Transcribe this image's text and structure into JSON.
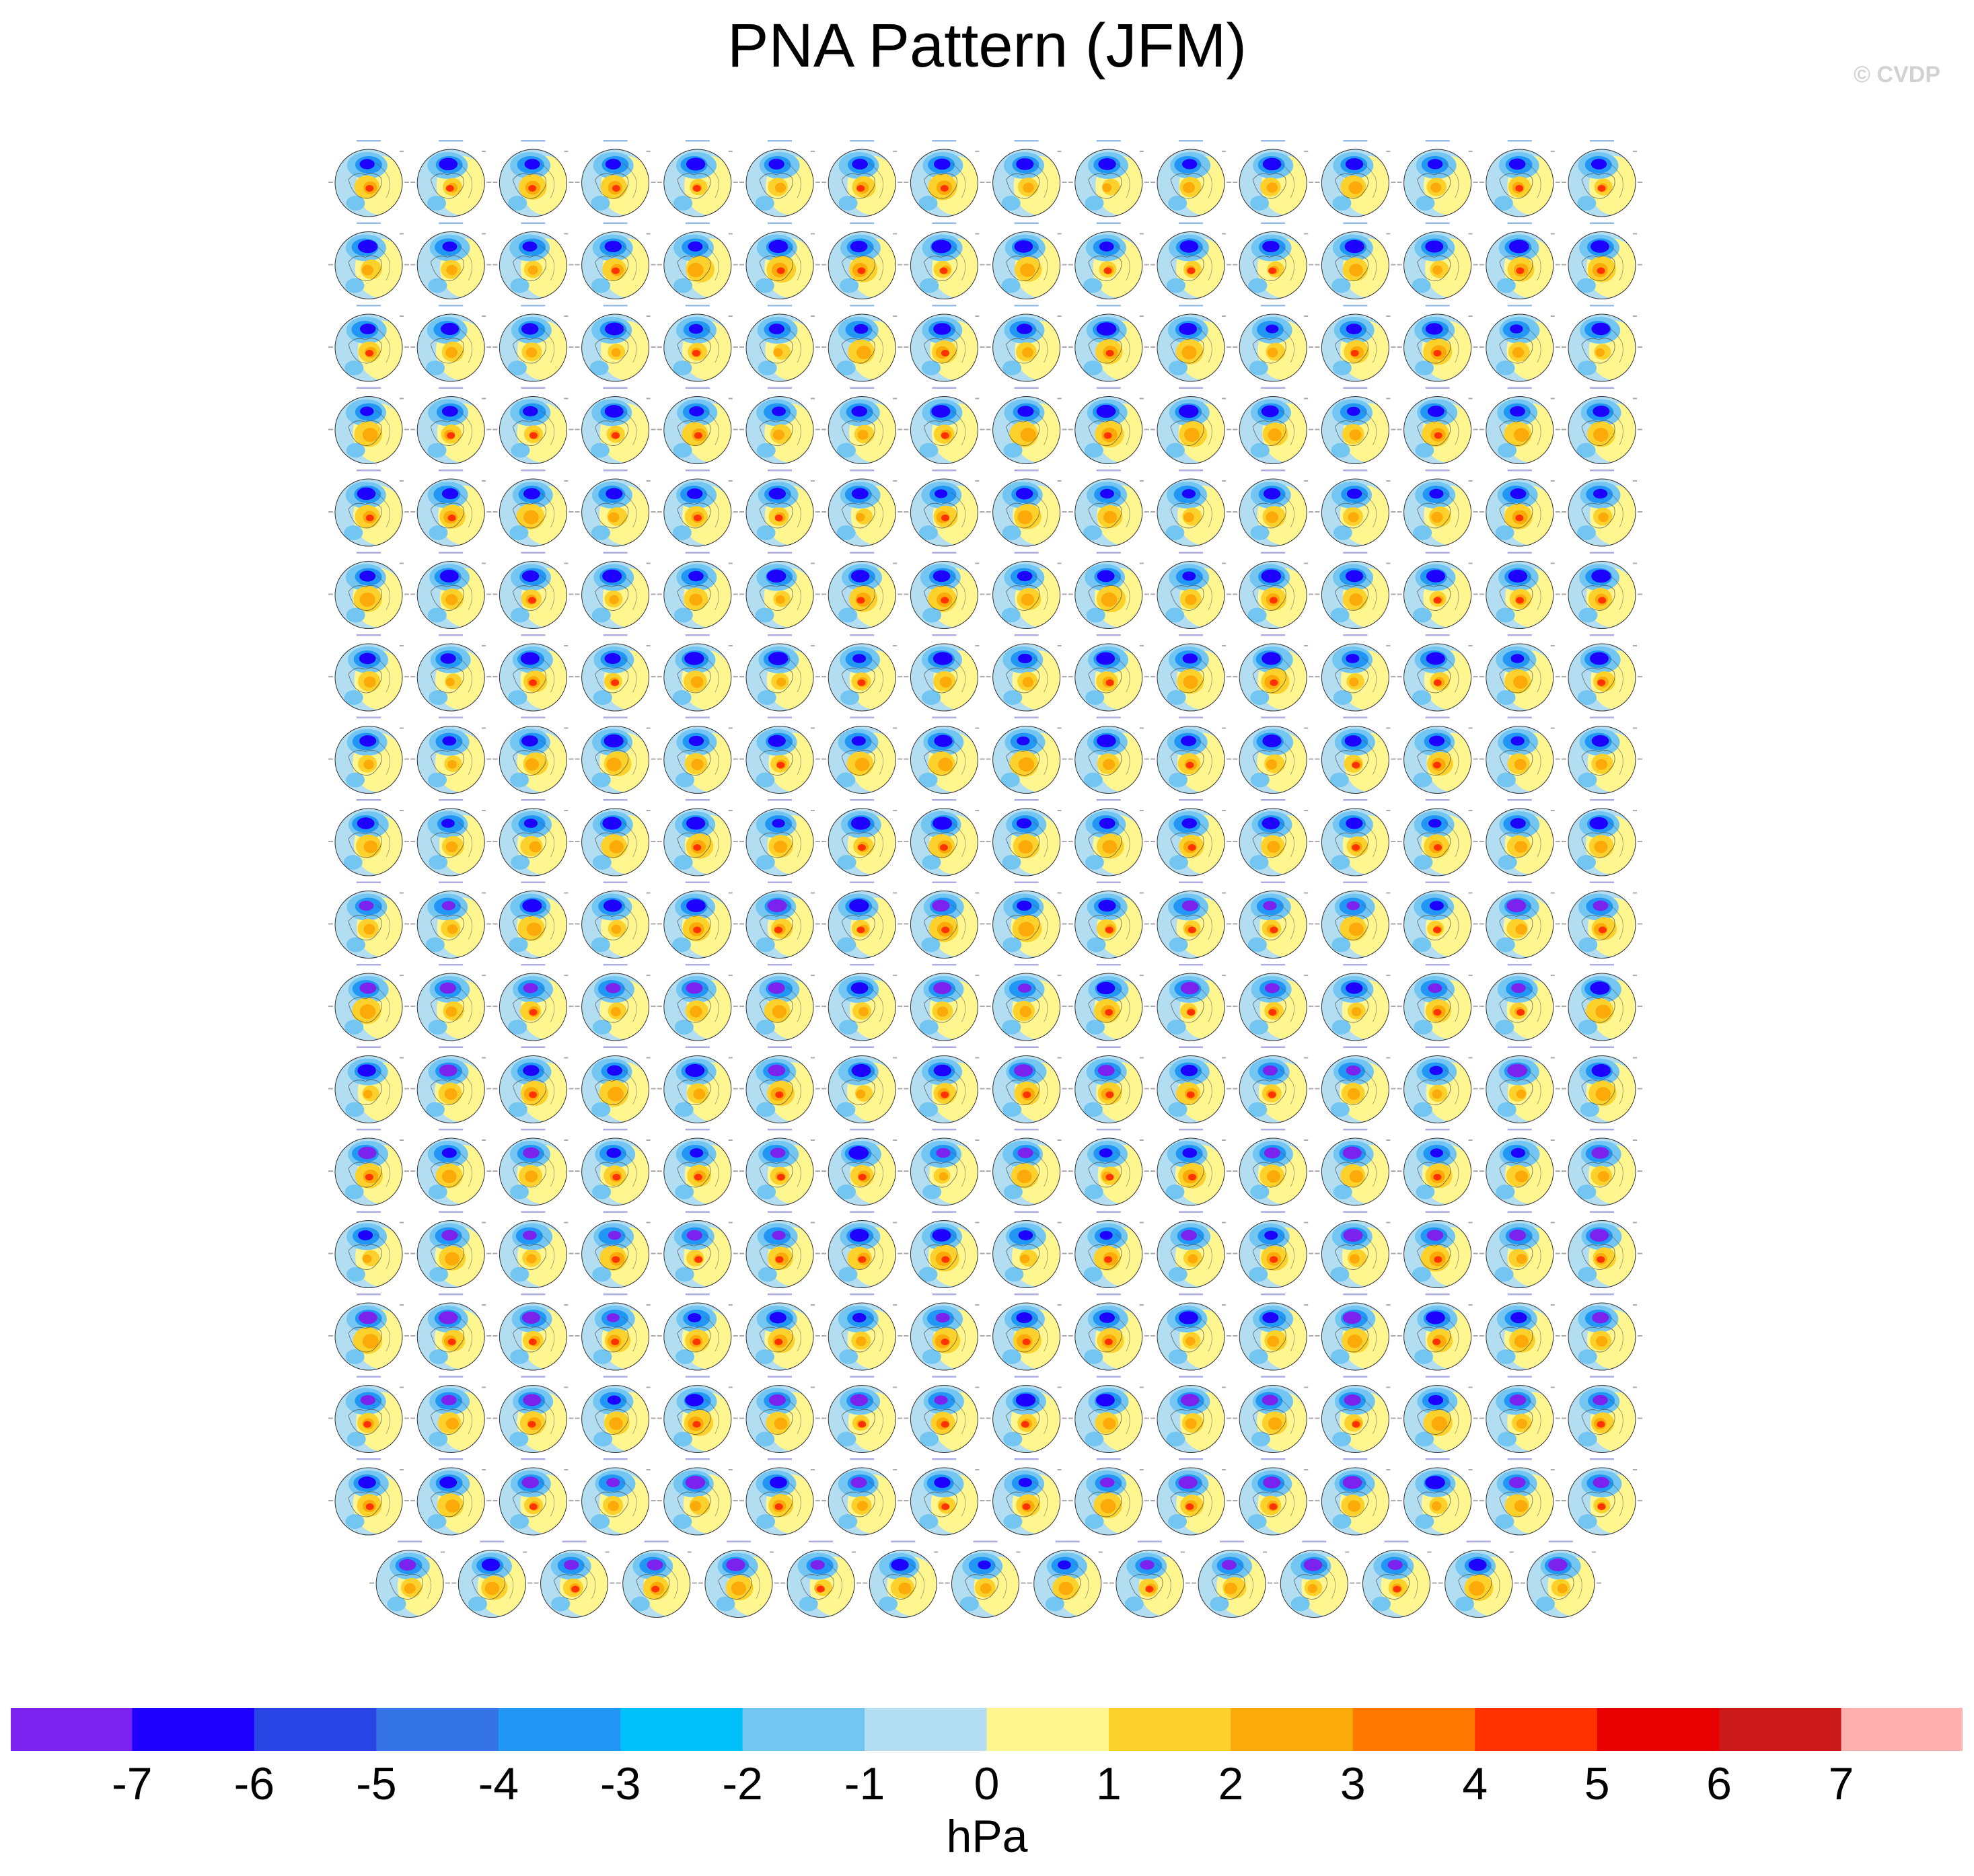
{
  "title": "PNA Pattern (JFM)",
  "watermark": "© CVDP",
  "chart_data": {
    "type": "heatmap",
    "title": "PNA Pattern (JFM)",
    "panel_grid": {
      "rows": 18,
      "columns_per_row": [
        16,
        16,
        16,
        16,
        16,
        16,
        16,
        16,
        16,
        16,
        16,
        16,
        16,
        16,
        16,
        16,
        16,
        15
      ],
      "total_panels": 287,
      "map_projection": "north polar stereographic"
    },
    "colorbar": {
      "unit": "hPa",
      "tick_labels": [
        "-7",
        "-6",
        "-5",
        "-4",
        "-3",
        "-2",
        "-1",
        "0",
        "1",
        "2",
        "3",
        "4",
        "5",
        "6",
        "7"
      ],
      "bins": 16,
      "colors": [
        "#7b22ee",
        "#1e00ff",
        "#2a45e6",
        "#3574e6",
        "#2196f5",
        "#00c0fc",
        "#73c6f1",
        "#b3def2",
        "#fff68f",
        "#fcd12c",
        "#fca90a",
        "#ff7800",
        "#ff3200",
        "#e60000",
        "#cc1a1a",
        "#ffb1b1"
      ]
    }
  }
}
